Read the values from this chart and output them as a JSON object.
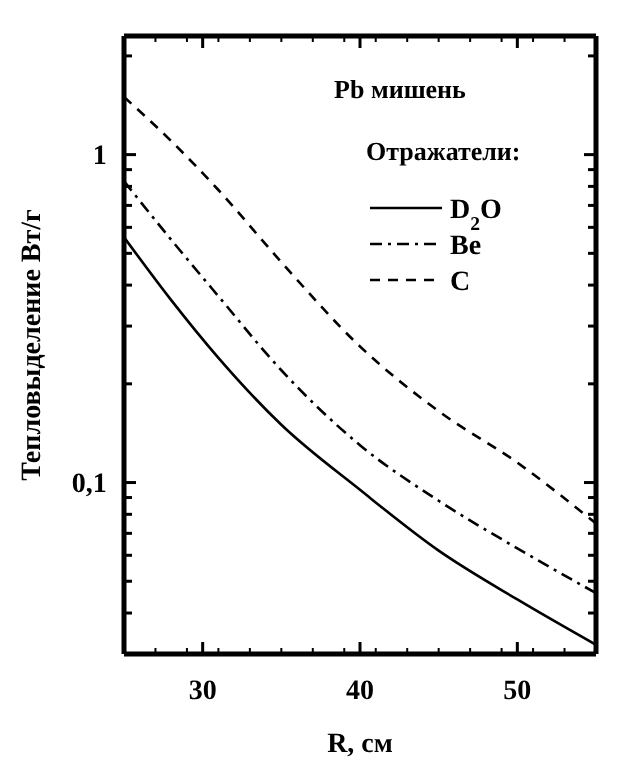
{
  "chart_data": {
    "type": "line",
    "title": "Pb мишень",
    "legend_title": "Отражатели:",
    "xlabel": "R, см",
    "ylabel": "Тепловыделение Вт/г",
    "log": true,
    "legend": "top right",
    "grid": false,
    "xlim": [
      25,
      55
    ],
    "xticks": [
      30,
      40,
      50
    ],
    "ylim": [
      0.03,
      2.3
    ],
    "yticks": [
      {
        "value": 0.03,
        "label": null
      },
      {
        "value": 0.04,
        "label": null
      },
      {
        "value": 0.05,
        "label": null
      },
      {
        "value": 0.06,
        "label": null
      },
      {
        "value": 0.07,
        "label": null
      },
      {
        "value": 0.08,
        "label": null
      },
      {
        "value": 0.09,
        "label": null
      },
      {
        "value": 0.1,
        "label": "0,1"
      },
      {
        "value": 0.2,
        "label": null
      },
      {
        "value": 0.3,
        "label": null
      },
      {
        "value": 0.4,
        "label": null
      },
      {
        "value": 0.5,
        "label": null
      },
      {
        "value": 0.6,
        "label": null
      },
      {
        "value": 0.7,
        "label": null
      },
      {
        "value": 0.8,
        "label": null
      },
      {
        "value": 0.9,
        "label": null
      },
      {
        "value": 1,
        "label": "1"
      },
      {
        "value": 2,
        "label": null
      }
    ],
    "x": [
      25,
      28,
      31,
      35,
      40,
      45,
      50,
      55
    ],
    "series": [
      {
        "name": "D$_{2}$O",
        "color": "#000000",
        "line_style": "solid",
        "values": [
          0.56,
          0.36,
          0.24,
          0.15,
          0.095,
          0.062,
          0.044,
          0.032
        ]
      },
      {
        "name": "Be",
        "color": "#000000",
        "line_style": "dashdot",
        "values": [
          0.83,
          0.55,
          0.37,
          0.22,
          0.13,
          0.088,
          0.063,
          0.046
        ]
      },
      {
        "name": "C",
        "color": "#000000",
        "line_style": "dashed",
        "values": [
          1.5,
          1.1,
          0.78,
          0.47,
          0.26,
          0.165,
          0.115,
          0.075
        ]
      }
    ]
  }
}
